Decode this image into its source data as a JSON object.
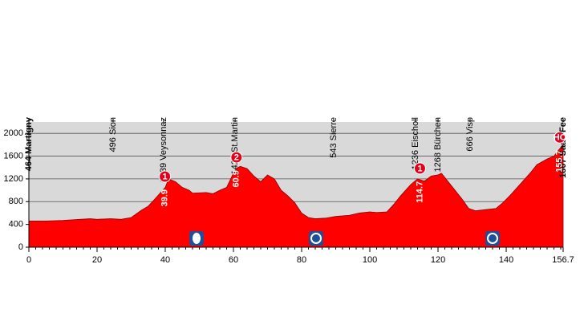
{
  "chart_data": {
    "type": "area",
    "color": "#ff0000",
    "x": [
      0,
      5,
      10,
      15,
      18,
      20,
      24,
      27,
      30,
      33,
      35,
      37,
      40,
      41,
      43,
      45,
      47,
      48,
      52,
      54,
      56,
      58,
      60,
      61,
      62,
      64,
      66,
      68,
      70,
      72,
      74,
      76,
      78,
      80,
      82,
      84,
      87,
      90,
      94,
      97,
      100,
      102,
      105,
      107,
      109,
      112,
      114,
      116,
      118,
      120,
      121,
      123,
      125,
      127,
      129,
      131,
      134,
      137,
      139,
      141,
      144,
      147,
      149,
      152,
      154,
      156.7
    ],
    "values": [
      460,
      460,
      470,
      490,
      500,
      490,
      500,
      490,
      520,
      650,
      720,
      850,
      1050,
      1200,
      1150,
      1050,
      1000,
      950,
      960,
      940,
      1000,
      1050,
      1300,
      1390,
      1420,
      1380,
      1250,
      1150,
      1270,
      1200,
      1000,
      900,
      780,
      600,
      520,
      500,
      510,
      540,
      560,
      600,
      620,
      610,
      620,
      750,
      900,
      1100,
      1200,
      1160,
      1250,
      1270,
      1300,
      1150,
      1000,
      850,
      680,
      640,
      660,
      680,
      780,
      900,
      1100,
      1300,
      1450,
      1550,
      1600,
      1807
    ],
    "xlim": [
      0,
      156.7
    ],
    "ylim": [
      0,
      2200
    ],
    "xticks": [
      0,
      20,
      40,
      60,
      80,
      100,
      120,
      140,
      156.7
    ],
    "yticks": [
      0,
      400,
      800,
      1200,
      1600,
      2000
    ],
    "grid": true,
    "places": [
      {
        "label": "464 Martigny",
        "x": 0
      },
      {
        "label": "496 Sion",
        "x": 24.7
      },
      {
        "label": "1239 Veysonnaz",
        "x": 39.5
      },
      {
        "label": "1424 St.Martin",
        "x": 60.5
      },
      {
        "label": "543 Sierre",
        "x": 89.4
      },
      {
        "label": "1236 Eischoll",
        "x": 113.4
      },
      {
        "label": "1268 Bürchen",
        "x": 120
      },
      {
        "label": "666 Visp",
        "x": 129.4
      },
      {
        "label": "1807 Saas-Fee",
        "x": 156.7
      }
    ],
    "climbs": [
      {
        "category": "1",
        "km": 39.9
      },
      {
        "category": "2",
        "km": 60.9
      },
      {
        "category": "1",
        "km": 114.7
      },
      {
        "category": "HC",
        "km": 155.7
      }
    ]
  }
}
